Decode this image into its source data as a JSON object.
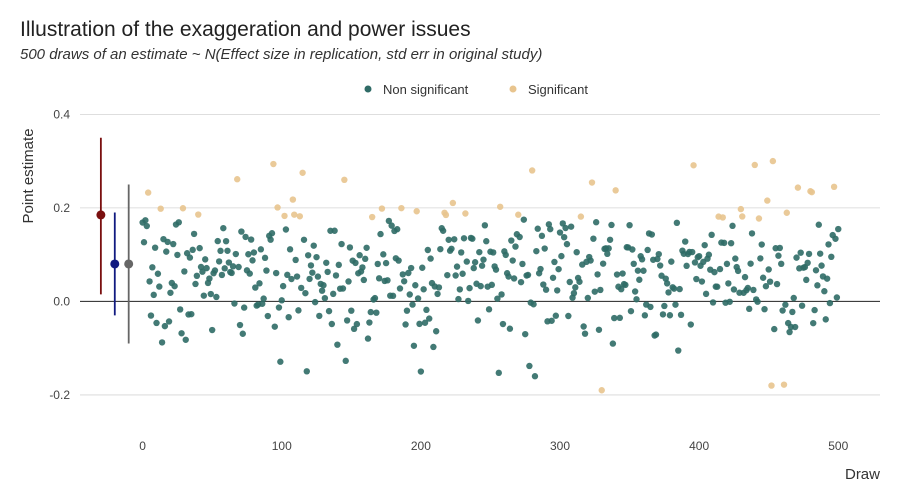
{
  "chart_data": {
    "type": "scatter",
    "title": "Illustration of the exaggeration and power issues",
    "subtitle": "500 draws of an estimate ~ N(Effect size in replication, std err in original study)",
    "xlabel": "Draw",
    "ylabel": "Point estimate",
    "xlim": [
      -45,
      530
    ],
    "ylim": [
      -0.275,
      0.405
    ],
    "x_ticks": [
      0,
      100,
      200,
      300,
      400,
      500
    ],
    "y_ticks": [
      -0.2,
      0.0,
      0.2,
      0.4
    ],
    "y_tick_labels": [
      "-0.2",
      "0.0",
      "0.2",
      "0.4"
    ],
    "grid": "horizontal",
    "legend_position": "top",
    "significance_threshold": 0.175,
    "series": [
      {
        "name": "Non significant",
        "color": "#2f6b66"
      },
      {
        "name": "Significant",
        "color": "#e8c48e"
      }
    ],
    "points_seed": 7,
    "n_draws": 500,
    "notable_points": [
      {
        "x": 200,
        "y": -0.15
      },
      {
        "x": 282,
        "y": -0.16
      },
      {
        "x": 330,
        "y": -0.19
      },
      {
        "x": 452,
        "y": -0.18
      },
      {
        "x": 461,
        "y": -0.178
      },
      {
        "x": 453,
        "y": 0.3
      },
      {
        "x": 280,
        "y": 0.28
      },
      {
        "x": 115,
        "y": 0.275
      },
      {
        "x": 145,
        "y": 0.26
      },
      {
        "x": 497,
        "y": 0.245
      }
    ],
    "error_bars": [
      {
        "x": -30,
        "y": 0.185,
        "low": 0.015,
        "high": 0.35,
        "color": "#7a0f0f"
      },
      {
        "x": -20,
        "y": 0.08,
        "low": -0.03,
        "high": 0.19,
        "color": "#111a80"
      },
      {
        "x": -10,
        "y": 0.08,
        "low": -0.09,
        "high": 0.25,
        "color": "#666666"
      }
    ]
  },
  "colors": {
    "grid": "#d4d4d4",
    "zero_line": "#222222"
  }
}
